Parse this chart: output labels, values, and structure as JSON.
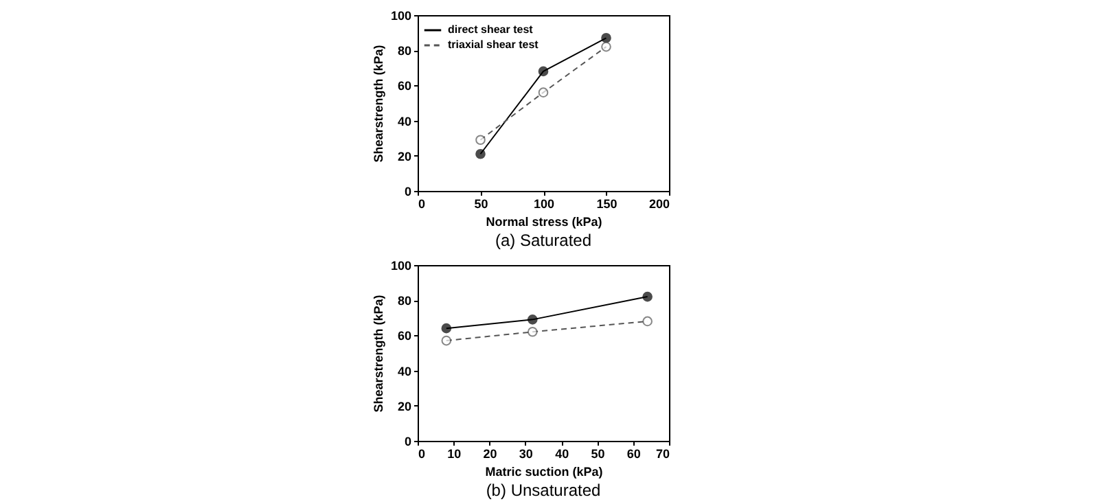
{
  "chart_data": [
    {
      "type": "line",
      "title": "(a) Saturated",
      "xlabel": "Normal stress  (kPa)",
      "ylabel": "Shearstrength (kPa)",
      "x": [
        50,
        100,
        150
      ],
      "xlim": [
        0,
        200
      ],
      "xticks": [
        0,
        50,
        100,
        150,
        200
      ],
      "ylim": [
        0,
        100
      ],
      "yticks": [
        0,
        20,
        40,
        60,
        80,
        100
      ],
      "marker": "circle",
      "legend": "top left",
      "grid": false,
      "series": [
        {
          "name": "direct shear test",
          "color": "#000000",
          "line_style": "solid",
          "values": [
            21,
            68,
            87
          ]
        },
        {
          "name": "triaxial shear test",
          "color": "#555555",
          "line_style": "dashed",
          "values": [
            29,
            56,
            82
          ]
        }
      ]
    },
    {
      "type": "line",
      "title": "(b) Unsaturated",
      "xlabel": "Matric suction  (kPa)",
      "ylabel": "Shearstrength (kPa)",
      "x": [
        8,
        32,
        64
      ],
      "xlim": [
        0,
        70
      ],
      "xticks": [
        0,
        10,
        20,
        30,
        40,
        50,
        60,
        70
      ],
      "ylim": [
        0,
        100
      ],
      "yticks": [
        0,
        20,
        40,
        60,
        80,
        100
      ],
      "marker": "circle",
      "legend": "top left",
      "grid": false,
      "series": [
        {
          "name": "direct shear test",
          "color": "#000000",
          "line_style": "solid",
          "values": [
            64,
            69,
            82
          ]
        },
        {
          "name": "triaxial shear test",
          "color": "#555555",
          "line_style": "dashed",
          "values": [
            57,
            62,
            68
          ]
        }
      ]
    }
  ]
}
